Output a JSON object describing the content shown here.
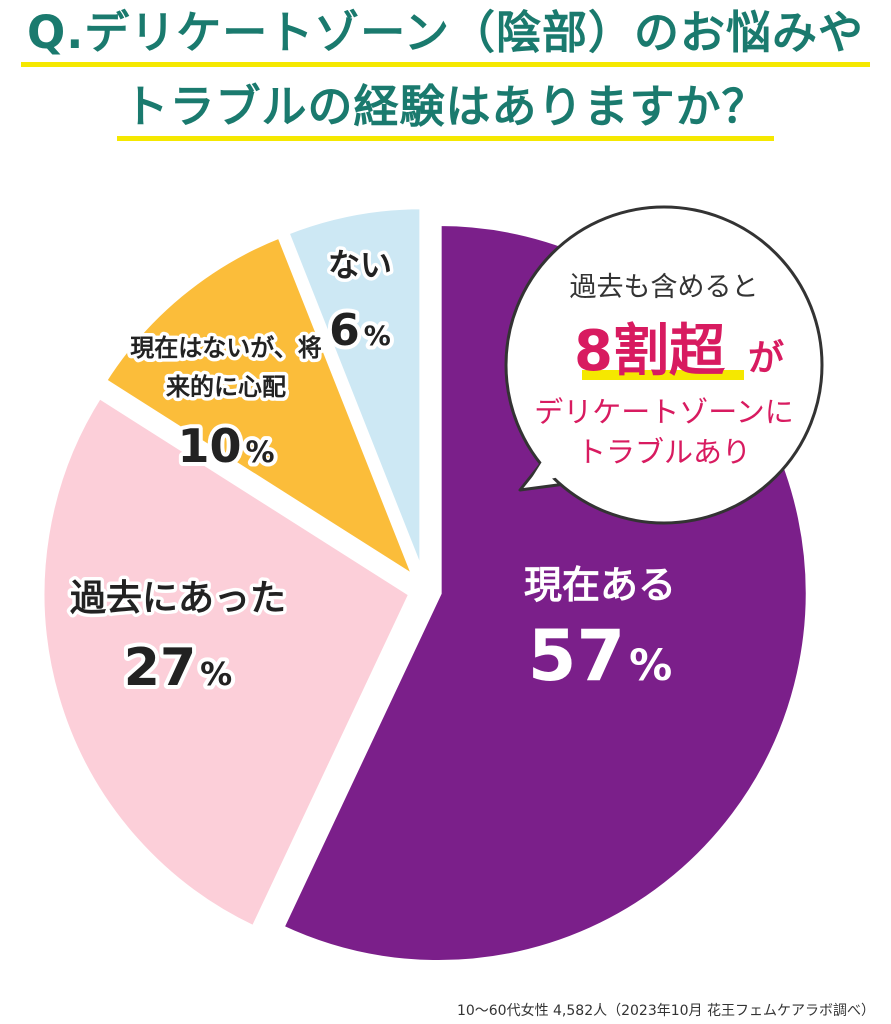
{
  "title": {
    "line1": "Q.デリケートゾーン（陰部）のお悩みや",
    "line2": "トラブルの経験はありますか？"
  },
  "chart_data": {
    "type": "pie",
    "slices": [
      {
        "label": "現在ある",
        "value": 57,
        "color": "#7b1f8a",
        "text_color": "#ffffff"
      },
      {
        "label": "過去にあった",
        "value": 27,
        "color": "#fccfd9",
        "text_color": "#222222"
      },
      {
        "label": "現在はないが、将来的に心配",
        "value": 10,
        "color": "#fbbd3a",
        "text_color": "#222222"
      },
      {
        "label": "ない",
        "value": 6,
        "color": "#cde8f4",
        "text_color": "#222222"
      }
    ],
    "value_suffix": "%"
  },
  "callout": {
    "line1": "過去も含めると",
    "highlight": "8割超",
    "suffix": "が",
    "line3": "デリケートゾーンに",
    "line4": "トラブルあり",
    "accent_color": "#d81b60"
  },
  "footnote": "10〜60代女性 4,582人（2023年10月 花王フェムケアラボ調べ）"
}
